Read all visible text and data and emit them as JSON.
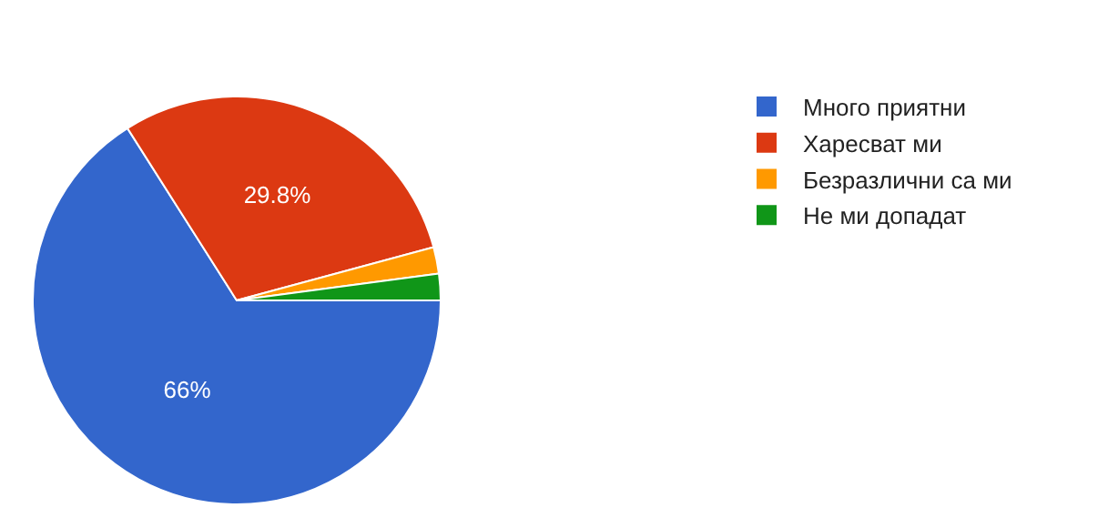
{
  "chart_data": {
    "type": "pie",
    "categories": [
      "Много приятни",
      "Харесват ми",
      "Безразлични са ми",
      "Не ми допадат"
    ],
    "values": [
      66,
      29.8,
      2.1,
      2.1
    ],
    "colors": [
      "#3366cc",
      "#dc3912",
      "#ff9900",
      "#109618"
    ],
    "value_labels": [
      "66%",
      "29.8%",
      null,
      null
    ],
    "legend": "right"
  }
}
